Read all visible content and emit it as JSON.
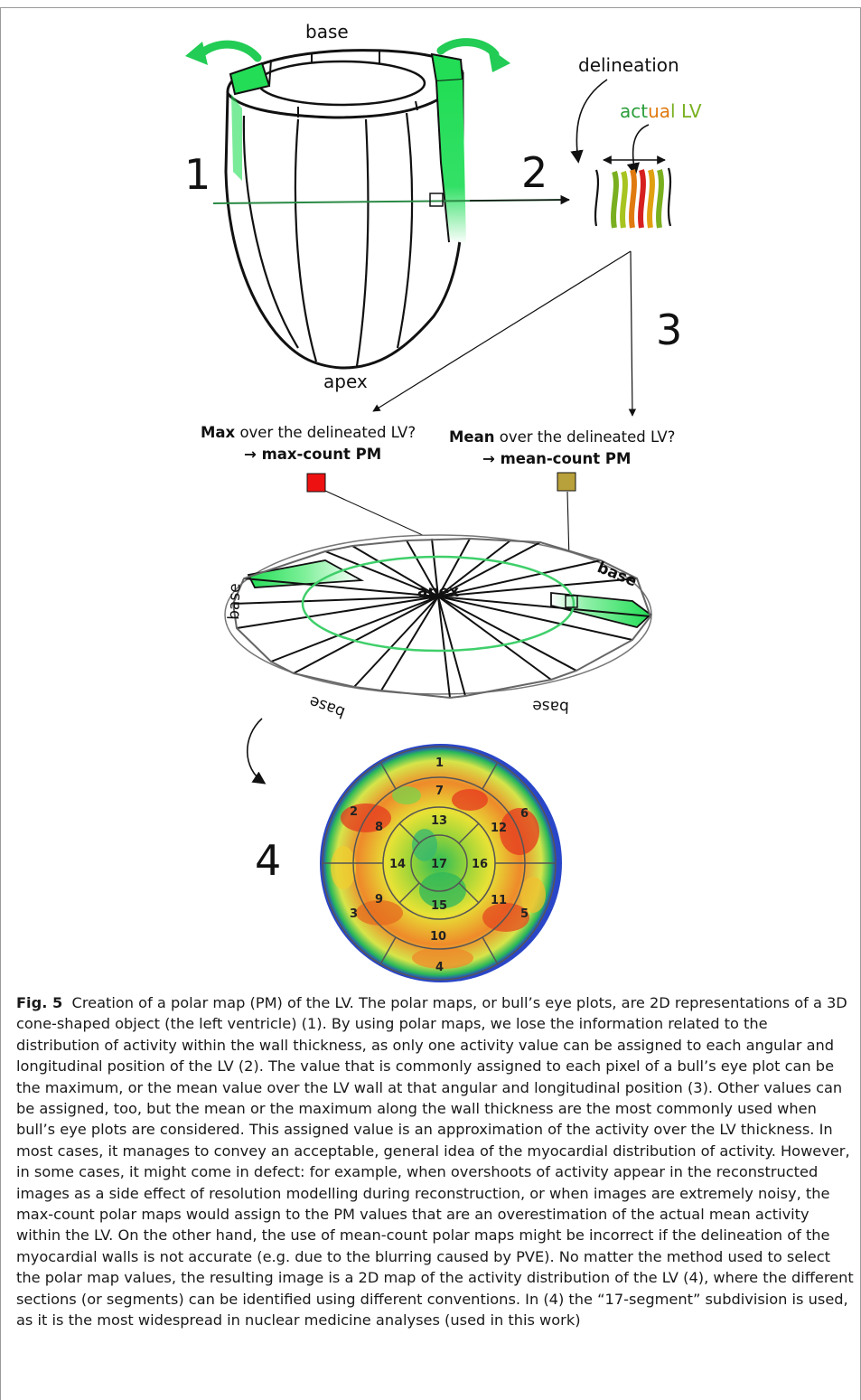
{
  "figure": {
    "labels": {
      "base_top": "base",
      "apex_cone": "apex",
      "delineation": "delineation",
      "actual_lv": [
        "act",
        "ua",
        "l LV"
      ],
      "step1": "1",
      "step2": "2",
      "step3": "3",
      "step4": "4",
      "max_line1_bold": "Max",
      "max_line1_rest": " over the delineated LV?",
      "max_line2": "→ max-count PM",
      "mean_line1_bold": "Mean",
      "mean_line1_rest": " over the delineated LV?",
      "mean_line2": "→ mean-count PM",
      "disk_apex": "apex",
      "disk_base_left": "base",
      "disk_base_right": "base",
      "disk_base_bottom_left": "base",
      "disk_base_bottom_right": "base"
    },
    "segments": [
      "1",
      "2",
      "3",
      "4",
      "5",
      "6",
      "7",
      "8",
      "9",
      "10",
      "11",
      "12",
      "13",
      "14",
      "15",
      "16",
      "17"
    ],
    "colors": {
      "highlight_green": "#22dd55",
      "max_swatch": "#ee1111",
      "mean_swatch": "#b8a03a",
      "actual_lv_colors": [
        "#2a9d3a",
        "#e07a10",
        "#d62020",
        "#7ab020"
      ]
    }
  },
  "caption": {
    "label": "Fig. 5",
    "text": "Creation of a polar map (PM) of the LV. The polar maps, or bull’s eye plots, are 2D representations of a 3D cone-shaped object (the left ventricle) (1). By using polar maps, we lose the information related to the distribution of activity within the wall thickness, as only one activity value can be assigned to each angular and longitudinal position of the LV (2). The value that is commonly assigned to each pixel of a bull’s eye plot can be the maximum, or the mean value over the LV wall at that angular and longitudinal position (3). Other values can be assigned, too, but the mean or the maximum along the wall thickness are the most commonly used when bull’s eye plots are considered. This assigned value is an approximation of the activity over the LV thickness. In most cases, it manages to convey an acceptable, general idea of the myocardial distribution of activity. However, in some cases, it might come in defect: for example, when overshoots of activity appear in the reconstructed images as a side effect of resolution modelling during reconstruction, or when images are extremely noisy, the max-count polar maps would assign to the PM values that are an overestimation of the actual mean activity within the LV. On the other hand, the use of mean-count polar maps might be incorrect if the delineation of the myocardial walls is not accurate (e.g. due to the blurring caused by PVE). No matter the method used to select the polar map values, the resulting image is a 2D map of the activity distribution of the LV (4), where the different sections (or segments) can be identified using different conventions. In (4) the “17-segment” subdivision is used, as it is the most widespread in nuclear medicine analyses (used in this work)"
  }
}
